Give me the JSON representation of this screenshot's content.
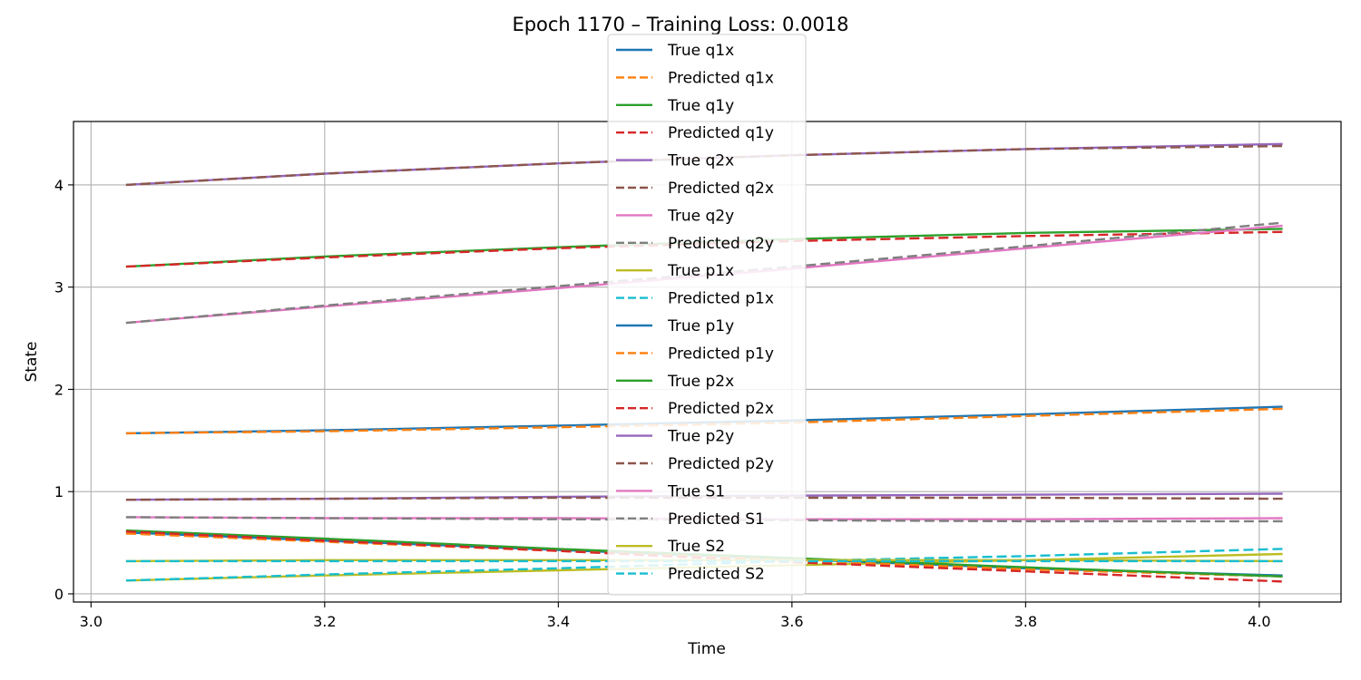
{
  "chart_data": {
    "type": "line",
    "title": "Epoch 1170 – Training Loss: 0.0018",
    "xlabel": "Time",
    "ylabel": "State",
    "xlim": [
      2.985,
      4.07
    ],
    "ylim": [
      -0.08,
      4.62
    ],
    "xticks": [
      3.0,
      3.2,
      3.4,
      3.6,
      3.8,
      4.0
    ],
    "xtick_labels": [
      "3.0",
      "3.2",
      "3.4",
      "3.6",
      "3.8",
      "4.0"
    ],
    "yticks": [
      0,
      1,
      2,
      3,
      4
    ],
    "ytick_labels": [
      "0",
      "1",
      "2",
      "3",
      "4"
    ],
    "grid": true,
    "legend_position": "top-center",
    "x": [
      3.03,
      3.2,
      3.4,
      3.6,
      3.8,
      4.02
    ],
    "series": [
      {
        "name": "True q1x",
        "color": "#1f77b4",
        "style": "solid",
        "values": [
          1.57,
          1.6,
          1.645,
          1.695,
          1.755,
          1.83
        ]
      },
      {
        "name": "Predicted q1x",
        "color": "#ff7f0e",
        "style": "dashed",
        "values": [
          1.57,
          1.59,
          1.63,
          1.675,
          1.74,
          1.81
        ]
      },
      {
        "name": "True q1y",
        "color": "#2ca02c",
        "style": "solid",
        "values": [
          3.2,
          3.3,
          3.39,
          3.47,
          3.53,
          3.57
        ]
      },
      {
        "name": "Predicted q1y",
        "color": "#d62728",
        "style": "dashed",
        "values": [
          3.2,
          3.29,
          3.38,
          3.45,
          3.5,
          3.54
        ]
      },
      {
        "name": "True q2x",
        "color": "#9467bd",
        "style": "solid",
        "values": [
          4.0,
          4.11,
          4.21,
          4.29,
          4.35,
          4.4
        ]
      },
      {
        "name": "Predicted q2x",
        "color": "#8c564b",
        "style": "dashed",
        "values": [
          4.0,
          4.11,
          4.21,
          4.29,
          4.35,
          4.38
        ]
      },
      {
        "name": "True q2y",
        "color": "#e377c2",
        "style": "solid",
        "values": [
          2.65,
          2.81,
          2.99,
          3.18,
          3.38,
          3.6
        ]
      },
      {
        "name": "Predicted q2y",
        "color": "#7f7f7f",
        "style": "dashed",
        "values": [
          2.65,
          2.82,
          3.01,
          3.2,
          3.4,
          3.63
        ]
      },
      {
        "name": "True p1x",
        "color": "#bcbd22",
        "style": "solid",
        "values": [
          0.13,
          0.18,
          0.23,
          0.28,
          0.33,
          0.39
        ]
      },
      {
        "name": "Predicted p1x",
        "color": "#17becf",
        "style": "dashed",
        "values": [
          0.13,
          0.19,
          0.25,
          0.32,
          0.37,
          0.44
        ]
      },
      {
        "name": "True p1y",
        "color": "#1f77b4",
        "style": "solid",
        "values": [
          0.6,
          0.52,
          0.43,
          0.34,
          0.25,
          0.18
        ]
      },
      {
        "name": "Predicted p1y",
        "color": "#ff7f0e",
        "style": "dashed",
        "values": [
          0.59,
          0.51,
          0.42,
          0.33,
          0.24,
          0.17
        ]
      },
      {
        "name": "True p2x",
        "color": "#2ca02c",
        "style": "solid",
        "values": [
          0.62,
          0.54,
          0.44,
          0.35,
          0.26,
          0.17
        ]
      },
      {
        "name": "Predicted p2x",
        "color": "#d62728",
        "style": "dashed",
        "values": [
          0.61,
          0.52,
          0.42,
          0.31,
          0.22,
          0.12
        ]
      },
      {
        "name": "True p2y",
        "color": "#9467bd",
        "style": "solid",
        "values": [
          0.92,
          0.93,
          0.95,
          0.96,
          0.97,
          0.98
        ]
      },
      {
        "name": "Predicted p2y",
        "color": "#8c564b",
        "style": "dashed",
        "values": [
          0.92,
          0.93,
          0.94,
          0.94,
          0.94,
          0.93
        ]
      },
      {
        "name": "True S1",
        "color": "#e377c2",
        "style": "solid",
        "values": [
          0.75,
          0.74,
          0.74,
          0.73,
          0.73,
          0.74
        ]
      },
      {
        "name": "Predicted S1",
        "color": "#7f7f7f",
        "style": "dashed",
        "values": [
          0.75,
          0.74,
          0.73,
          0.72,
          0.71,
          0.71
        ]
      },
      {
        "name": "True S2",
        "color": "#bcbd22",
        "style": "solid",
        "values": [
          0.32,
          0.33,
          0.33,
          0.33,
          0.33,
          0.32
        ]
      },
      {
        "name": "Predicted S2",
        "color": "#17becf",
        "style": "dashed",
        "values": [
          0.32,
          0.32,
          0.32,
          0.32,
          0.32,
          0.32
        ]
      }
    ]
  }
}
